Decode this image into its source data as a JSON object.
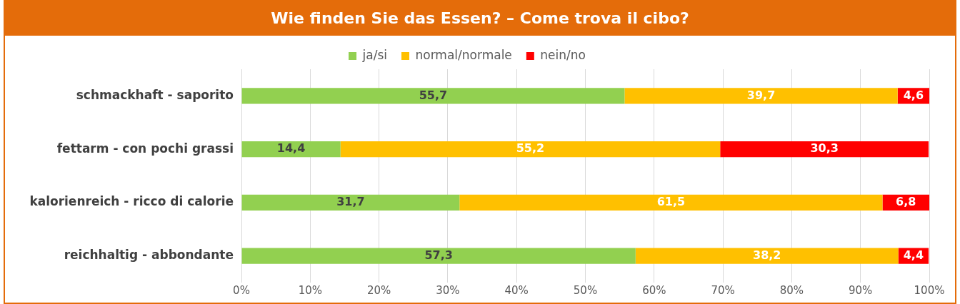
{
  "chart_data": {
    "type": "bar",
    "orientation": "horizontal",
    "stacked": true,
    "title": "Wie finden Sie das Essen? – Come trova il cibo?",
    "categories": [
      "schmackhaft - saporito",
      "fettarm - con pochi grassi",
      "kalorienreich - ricco di calorie",
      "reichhaltig - abbondante"
    ],
    "series": [
      {
        "name": "ja/si",
        "color": "#92d050",
        "values": [
          55.7,
          14.4,
          31.7,
          57.3
        ],
        "value_labels": [
          "55,7",
          "14,4",
          "31,7",
          "57,3"
        ]
      },
      {
        "name": "normal/normale",
        "color": "#ffc000",
        "values": [
          39.7,
          55.2,
          61.5,
          38.2
        ],
        "value_labels": [
          "39,7",
          "55,2",
          "61,5",
          "38,2"
        ]
      },
      {
        "name": "nein/no",
        "color": "#ff0000",
        "values": [
          4.6,
          30.3,
          6.8,
          4.4
        ],
        "value_labels": [
          "4,6",
          "30,3",
          "6,8",
          "4,4"
        ]
      }
    ],
    "xlim": [
      0,
      100
    ],
    "xticks": [
      {
        "value": 0,
        "label": "0%"
      },
      {
        "value": 10,
        "label": "10%"
      },
      {
        "value": 20,
        "label": "20%"
      },
      {
        "value": 30,
        "label": "30%"
      },
      {
        "value": 40,
        "label": "40%"
      },
      {
        "value": 50,
        "label": "50%"
      },
      {
        "value": 60,
        "label": "60%"
      },
      {
        "value": 70,
        "label": "70%"
      },
      {
        "value": 80,
        "label": "80%"
      },
      {
        "value": 90,
        "label": "90%"
      },
      {
        "value": 100,
        "label": "100%"
      }
    ],
    "grid": "x",
    "legend": "top"
  }
}
